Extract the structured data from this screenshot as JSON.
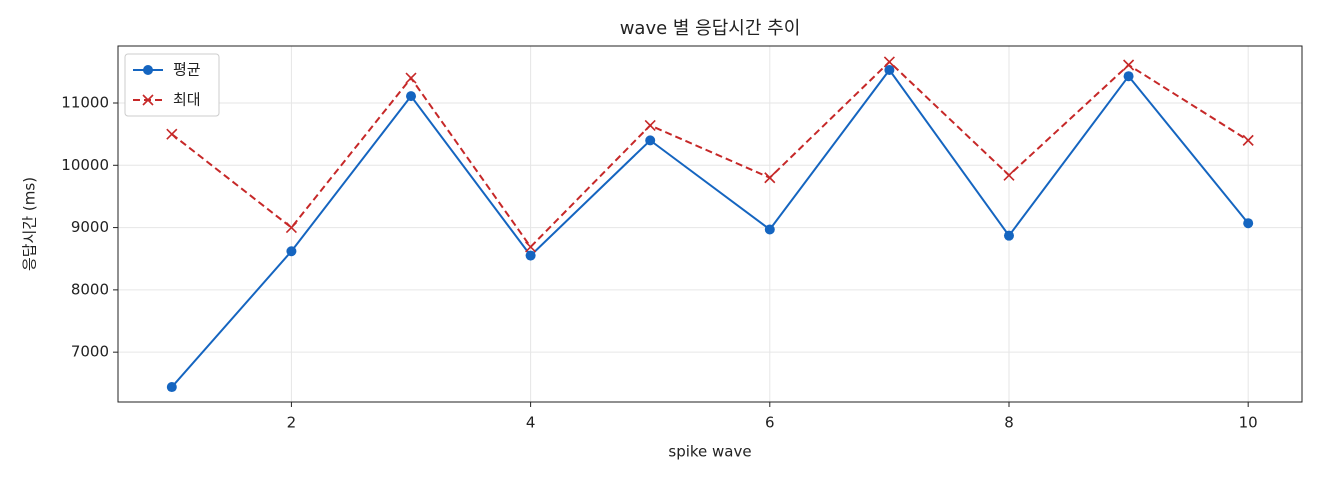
{
  "chart_data": {
    "type": "line",
    "title": "wave 별 응답시간 추이",
    "x_label": "spike wave",
    "y_label": "응답시간 (ms)",
    "x": [
      1,
      2,
      3,
      4,
      5,
      6,
      7,
      8,
      9,
      10
    ],
    "series": [
      {
        "name": "평균",
        "color": "#1565c0",
        "linestyle": "solid",
        "marker": "circle",
        "values": [
          6440,
          8620,
          11110,
          8550,
          10400,
          8970,
          11530,
          8870,
          11430,
          9070
        ]
      },
      {
        "name": "최대",
        "color": "#c62828",
        "linestyle": "dashed",
        "marker": "x",
        "values": [
          10500,
          9000,
          11400,
          8690,
          10640,
          9800,
          11660,
          9840,
          11610,
          10400
        ]
      }
    ],
    "xlim": [
      0.55,
      10.45
    ],
    "xticks": [
      2,
      4,
      6,
      8,
      10
    ],
    "ylim": [
      6200,
      11915
    ],
    "yticks": [
      7000,
      8000,
      9000,
      10000,
      11000
    ],
    "grid": true,
    "legend": "upper left"
  }
}
